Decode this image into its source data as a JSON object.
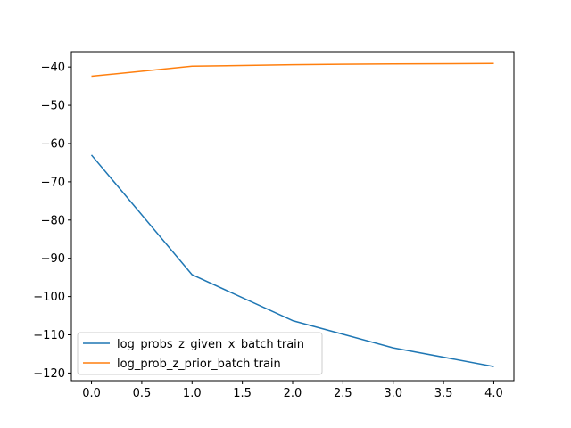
{
  "chart_data": {
    "type": "line",
    "title": "",
    "xlabel": "",
    "ylabel": "",
    "xlim": [
      -0.2,
      4.2
    ],
    "ylim": [
      -122,
      -36
    ],
    "xticks": [
      0.0,
      0.5,
      1.0,
      1.5,
      2.0,
      2.5,
      3.0,
      3.5,
      4.0
    ],
    "xtick_labels": [
      "0.0",
      "0.5",
      "1.0",
      "1.5",
      "2.0",
      "2.5",
      "3.0",
      "3.5",
      "4.0"
    ],
    "yticks": [
      -40,
      -50,
      -60,
      -70,
      -80,
      -90,
      -100,
      -110,
      -120
    ],
    "ytick_labels": [
      "−40",
      "−50",
      "−60",
      "−70",
      "−80",
      "−90",
      "−100",
      "−110",
      "−120"
    ],
    "grid": false,
    "legend_position": "lower-left",
    "x": [
      0,
      1,
      2,
      3,
      4
    ],
    "series": [
      {
        "name": "log_probs_z_given_x_batch train",
        "color": "#1f77b4",
        "values": [
          -63.0,
          -94.3,
          -106.3,
          -113.4,
          -118.3
        ]
      },
      {
        "name": "log_prob_z_prior_batch train",
        "color": "#ff7f0e",
        "values": [
          -42.4,
          -39.8,
          -39.4,
          -39.2,
          -39.1
        ]
      }
    ]
  }
}
